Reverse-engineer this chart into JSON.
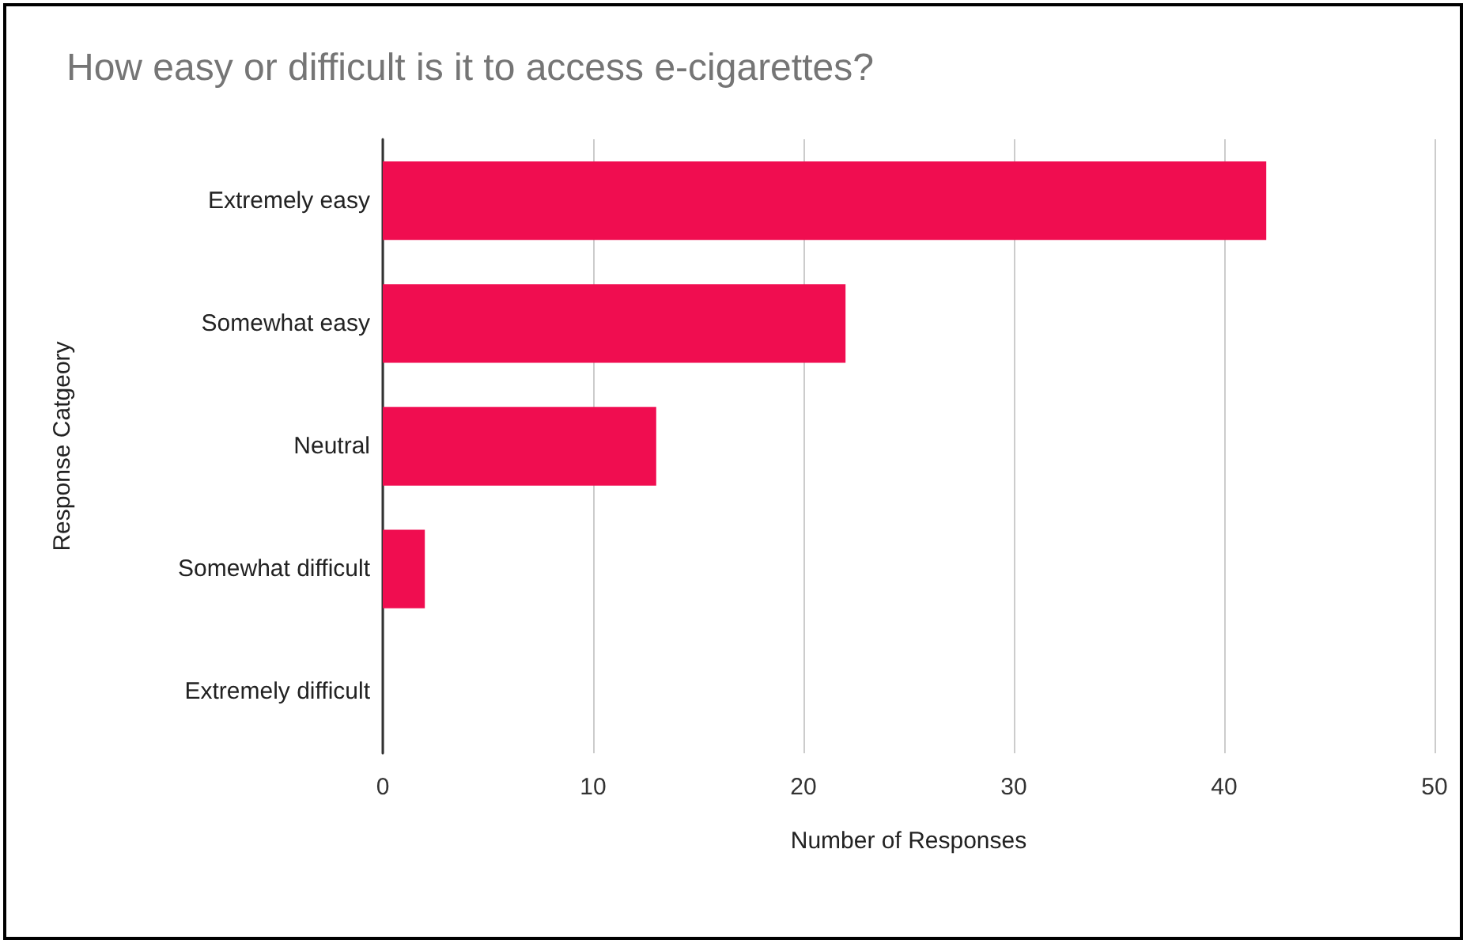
{
  "chart_data": {
    "type": "bar",
    "orientation": "horizontal",
    "title": "How easy or difficult is it to access e-cigarettes?",
    "xlabel": "Number of Responses",
    "ylabel": "Response Catgeory",
    "categories": [
      "Extremely easy",
      "Somewhat easy",
      "Neutral",
      "Somewhat difficult",
      "Extremely difficult"
    ],
    "values": [
      42,
      22,
      13,
      2,
      0
    ],
    "color": "#f00d50",
    "xlim": [
      0,
      50
    ],
    "xticks": [
      0,
      10,
      20,
      30,
      40,
      50
    ],
    "grid": "x"
  }
}
